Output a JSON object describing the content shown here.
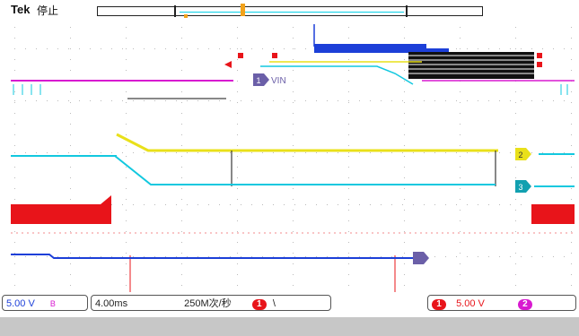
{
  "header": {
    "brand": "Tek",
    "state": "停止"
  },
  "markers": {
    "ch1_label": "1",
    "ch1_text": "VIN",
    "ch2_label": "2",
    "ch3_label": "3"
  },
  "status": {
    "ch1_scale": "5.00 V",
    "bw_symbol": "B",
    "timebase": "4.00ms",
    "sample_rate": "250M次/秒",
    "trigger_channel": "1",
    "trigger_slope": "\\",
    "ch1b_badge": "1",
    "ch1b_scale": "5.00 V",
    "ch2_badge": "2"
  },
  "colors": {
    "ch1": "#e8141a",
    "ch2": "#e9e01a",
    "ch3": "#12c8df",
    "ch4": "#1c3fd8",
    "math": "#d81ad0",
    "ref": "#6b5fa8"
  }
}
